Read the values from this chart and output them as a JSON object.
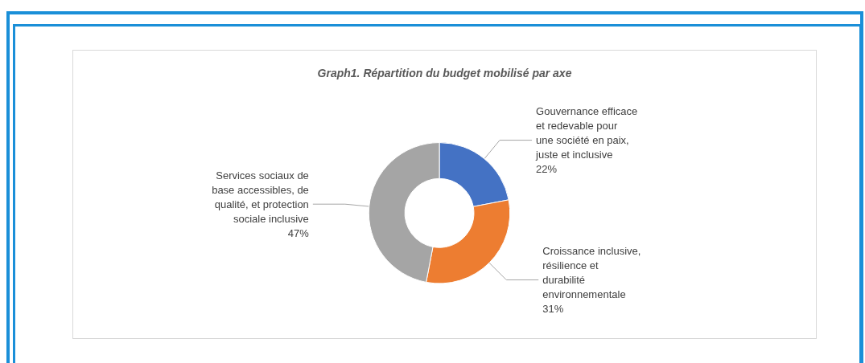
{
  "chart_data": {
    "type": "donut",
    "title": "Graph1. Répartition du budget mobilisé par axe",
    "categories": [
      "Gouvernance efficace\net redevable pour\nune société en paix,\njuste et inclusive",
      "Croissance inclusive,\nrésilience et\ndurabilité\nenvironnementale",
      "Services sociaux de\nbase accessibles, de\nqualité, et protection\nsociale inclusive"
    ],
    "values": [
      22,
      31,
      47
    ],
    "colors": [
      "#4472c4",
      "#ed7d31",
      "#a5a5a5"
    ],
    "value_labels": [
      "22%",
      "31%",
      "47%"
    ],
    "legend": false
  }
}
